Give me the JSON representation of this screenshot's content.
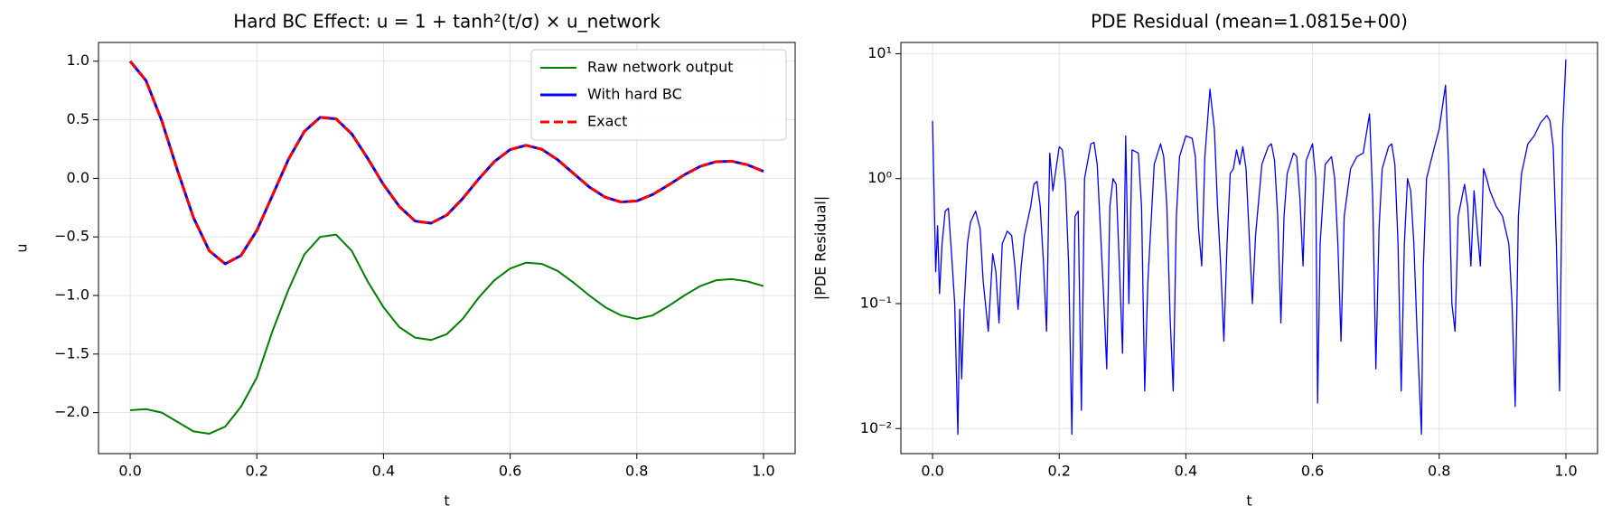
{
  "chart_data": [
    {
      "type": "line",
      "title": "Hard BC Effect: u = 1 + tanh²(t/σ) × u_network",
      "xlabel": "t",
      "ylabel": "u",
      "x": [
        0,
        0.025,
        0.05,
        0.075,
        0.1,
        0.125,
        0.15,
        0.175,
        0.2,
        0.225,
        0.25,
        0.275,
        0.3,
        0.325,
        0.35,
        0.375,
        0.4,
        0.425,
        0.45,
        0.475,
        0.5,
        0.525,
        0.55,
        0.575,
        0.6,
        0.625,
        0.65,
        0.675,
        0.7,
        0.725,
        0.75,
        0.775,
        0.8,
        0.825,
        0.85,
        0.875,
        0.9,
        0.925,
        0.95,
        0.975,
        1.0
      ],
      "series": [
        {
          "name": "Raw network output",
          "color": "#008000",
          "linewidth": 2,
          "linestyle": "solid",
          "values": [
            -1.98,
            -1.97,
            -2.0,
            -2.08,
            -2.16,
            -2.18,
            -2.12,
            -1.95,
            -1.7,
            -1.3,
            -0.95,
            -0.65,
            -0.5,
            -0.48,
            -0.62,
            -0.88,
            -1.1,
            -1.27,
            -1.36,
            -1.38,
            -1.33,
            -1.2,
            -1.02,
            -0.87,
            -0.77,
            -0.72,
            -0.73,
            -0.79,
            -0.89,
            -1.0,
            -1.1,
            -1.17,
            -1.2,
            -1.17,
            -1.09,
            -1.0,
            -0.92,
            -0.87,
            -0.86,
            -0.88,
            -0.92
          ]
        },
        {
          "name": "With hard BC",
          "color": "#0000ff",
          "linewidth": 3,
          "linestyle": "solid",
          "values": [
            1,
            0.835,
            0.49,
            0.064,
            -0.336,
            -0.619,
            -0.73,
            -0.659,
            -0.445,
            -0.142,
            0.163,
            0.4,
            0.521,
            0.508,
            0.379,
            0.171,
            -0.053,
            -0.24,
            -0.365,
            -0.383,
            -0.313,
            -0.173,
            -0.008,
            0.143,
            0.245,
            0.282,
            0.248,
            0.159,
            0.042,
            -0.074,
            -0.161,
            -0.202,
            -0.193,
            -0.138,
            -0.057,
            0.03,
            0.102,
            0.142,
            0.146,
            0.115,
            0.06
          ]
        },
        {
          "name": "Exact",
          "color": "#ff0000",
          "linewidth": 3,
          "linestyle": "dashed",
          "values": [
            1,
            0.835,
            0.49,
            0.064,
            -0.336,
            -0.619,
            -0.73,
            -0.659,
            -0.445,
            -0.142,
            0.163,
            0.4,
            0.521,
            0.508,
            0.379,
            0.171,
            -0.053,
            -0.24,
            -0.365,
            -0.383,
            -0.313,
            -0.173,
            -0.008,
            0.143,
            0.245,
            0.282,
            0.248,
            0.159,
            0.042,
            -0.074,
            -0.161,
            -0.202,
            -0.193,
            -0.138,
            -0.057,
            0.03,
            0.102,
            0.142,
            0.146,
            0.115,
            0.06
          ]
        }
      ],
      "xlim": [
        -0.05,
        1.05
      ],
      "xticks": [
        {
          "value": 0,
          "label": "0.0"
        },
        0.2,
        0.4,
        0.6,
        0.8,
        {
          "value": 1,
          "label": "1.0"
        }
      ],
      "ylim": [
        -2.35,
        1.16
      ],
      "yticks": [
        {
          "value": -2,
          "label": "−2.0"
        },
        {
          "value": -1.5,
          "label": "−1.5"
        },
        {
          "value": -1,
          "label": "−1.0"
        },
        {
          "value": -0.5,
          "label": "−0.5"
        },
        {
          "value": 0,
          "label": "0.0"
        },
        0.5,
        {
          "value": 1,
          "label": "1.0"
        }
      ],
      "yscale": "linear",
      "grid": true,
      "legend": "upper right"
    },
    {
      "type": "line",
      "title": "PDE Residual (mean=1.0815e+00)",
      "xlabel": "t",
      "ylabel": "|PDE Residual|",
      "x": [
        0,
        0.005,
        0.008,
        0.011,
        0.015,
        0.02,
        0.025,
        0.03,
        0.035,
        0.04,
        0.043,
        0.046,
        0.05,
        0.055,
        0.06,
        0.068,
        0.075,
        0.08,
        0.088,
        0.095,
        0.1,
        0.105,
        0.11,
        0.118,
        0.125,
        0.13,
        0.135,
        0.14,
        0.145,
        0.155,
        0.16,
        0.165,
        0.17,
        0.175,
        0.18,
        0.185,
        0.19,
        0.2,
        0.205,
        0.21,
        0.215,
        0.22,
        0.225,
        0.23,
        0.235,
        0.24,
        0.25,
        0.255,
        0.26,
        0.265,
        0.27,
        0.275,
        0.28,
        0.285,
        0.29,
        0.295,
        0.3,
        0.305,
        0.31,
        0.315,
        0.325,
        0.33,
        0.335,
        0.34,
        0.35,
        0.36,
        0.365,
        0.37,
        0.375,
        0.38,
        0.385,
        0.39,
        0.4,
        0.41,
        0.415,
        0.42,
        0.425,
        0.43,
        0.438,
        0.445,
        0.45,
        0.455,
        0.46,
        0.465,
        0.47,
        0.475,
        0.48,
        0.485,
        0.49,
        0.495,
        0.5,
        0.505,
        0.51,
        0.52,
        0.53,
        0.535,
        0.54,
        0.545,
        0.55,
        0.555,
        0.56,
        0.57,
        0.575,
        0.58,
        0.585,
        0.59,
        0.6,
        0.605,
        0.608,
        0.612,
        0.62,
        0.63,
        0.635,
        0.64,
        0.645,
        0.65,
        0.66,
        0.67,
        0.68,
        0.69,
        0.695,
        0.7,
        0.705,
        0.71,
        0.72,
        0.725,
        0.73,
        0.735,
        0.74,
        0.745,
        0.75,
        0.755,
        0.76,
        0.765,
        0.772,
        0.775,
        0.78,
        0.79,
        0.8,
        0.81,
        0.815,
        0.82,
        0.825,
        0.83,
        0.84,
        0.845,
        0.85,
        0.855,
        0.86,
        0.865,
        0.87,
        0.875,
        0.88,
        0.89,
        0.9,
        0.91,
        0.915,
        0.92,
        0.925,
        0.93,
        0.94,
        0.95,
        0.96,
        0.97,
        0.975,
        0.98,
        0.985,
        0.99,
        0.995,
        1.0
      ],
      "series": [
        {
          "color": "#0000ff",
          "linewidth": 1.3,
          "linestyle": "solid",
          "values": [
            2.9,
            0.18,
            0.42,
            0.12,
            0.3,
            0.55,
            0.58,
            0.25,
            0.1,
            0.009,
            0.09,
            0.025,
            0.1,
            0.3,
            0.45,
            0.55,
            0.4,
            0.15,
            0.06,
            0.25,
            0.18,
            0.07,
            0.3,
            0.38,
            0.35,
            0.2,
            0.09,
            0.2,
            0.35,
            0.6,
            0.9,
            0.95,
            0.6,
            0.22,
            0.06,
            1.6,
            0.8,
            1.8,
            1.7,
            0.9,
            0.2,
            0.009,
            0.5,
            0.55,
            0.014,
            1.0,
            1.9,
            1.95,
            1.3,
            0.4,
            0.12,
            0.03,
            0.6,
            1.0,
            0.9,
            0.2,
            0.04,
            2.2,
            0.1,
            1.7,
            1.6,
            0.6,
            0.02,
            0.15,
            1.3,
            1.9,
            1.5,
            0.6,
            0.08,
            0.02,
            0.5,
            1.5,
            2.2,
            2.1,
            1.5,
            0.4,
            0.2,
            1.5,
            5.2,
            2.5,
            0.6,
            0.2,
            0.05,
            0.3,
            1.1,
            1.2,
            1.7,
            1.3,
            1.8,
            1.2,
            0.35,
            0.1,
            0.35,
            1.3,
            1.8,
            1.9,
            1.4,
            0.5,
            0.07,
            0.5,
            1.1,
            1.6,
            1.5,
            0.7,
            0.2,
            1.4,
            1.9,
            1.0,
            0.016,
            0.3,
            1.3,
            1.5,
            1.0,
            0.3,
            0.05,
            0.5,
            1.2,
            1.5,
            1.6,
            3.3,
            0.7,
            0.03,
            0.4,
            1.2,
            1.8,
            1.9,
            1.3,
            0.3,
            0.02,
            0.3,
            1.0,
            0.8,
            0.3,
            0.06,
            0.009,
            0.2,
            1.0,
            1.6,
            2.5,
            5.6,
            1.2,
            0.1,
            0.06,
            0.5,
            0.9,
            0.6,
            0.2,
            0.8,
            0.4,
            0.2,
            1.2,
            1.0,
            0.8,
            0.6,
            0.5,
            0.3,
            0.1,
            0.015,
            0.5,
            1.1,
            1.9,
            2.2,
            2.8,
            3.2,
            2.9,
            1.8,
            0.3,
            0.02,
            2.5,
            9.0
          ]
        }
      ],
      "xlim": [
        -0.05,
        1.05
      ],
      "xticks": [
        {
          "value": 0,
          "label": "0.0"
        },
        0.2,
        0.4,
        0.6,
        0.8,
        {
          "value": 1,
          "label": "1.0"
        }
      ],
      "ylim": [
        0.0063,
        12.3
      ],
      "yticks": [
        {
          "value": 0.01,
          "label": "10⁻²"
        },
        {
          "value": 0.1,
          "label": "10⁻¹"
        },
        {
          "value": 1,
          "label": "10⁰"
        },
        {
          "value": 10,
          "label": "10¹"
        }
      ],
      "yscale": "log",
      "grid": true
    }
  ]
}
